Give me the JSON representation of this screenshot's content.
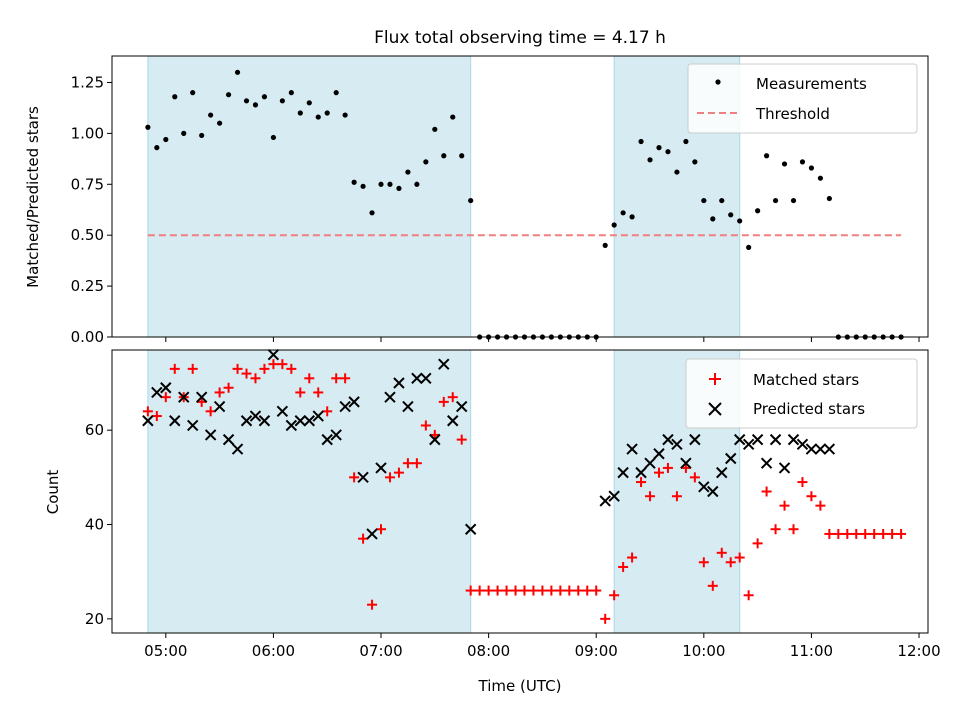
{
  "chart_data": [
    {
      "type": "scatter",
      "title": "Flux total observing time = 4.17 h",
      "xlabel": "",
      "ylabel": "Matched/Predicted stars",
      "xlim": [
        "04:30",
        "12:05"
      ],
      "ylim": [
        0,
        1.38
      ],
      "yticks": [
        0.0,
        0.25,
        0.5,
        0.75,
        1.0,
        1.25
      ],
      "ytick_labels": [
        "0.00",
        "0.25",
        "0.50",
        "0.75",
        "1.00",
        "1.25"
      ],
      "shaded_intervals": [
        [
          "04:50",
          "07:50"
        ],
        [
          "09:10",
          "10:20"
        ]
      ],
      "threshold": {
        "name": "Threshold",
        "value": 0.5,
        "x_range": [
          "04:50",
          "11:50"
        ],
        "color": "#f08080"
      },
      "legend": {
        "placement": "top-right",
        "entries": [
          "Measurements",
          "Threshold"
        ]
      },
      "series": [
        {
          "name": "Measurements",
          "marker": "dot",
          "color": "#000000",
          "points": [
            [
              "04:50",
              1.03
            ],
            [
              "04:55",
              0.93
            ],
            [
              "05:00",
              0.97
            ],
            [
              "05:05",
              1.18
            ],
            [
              "05:10",
              1.0
            ],
            [
              "05:15",
              1.2
            ],
            [
              "05:20",
              0.99
            ],
            [
              "05:25",
              1.09
            ],
            [
              "05:30",
              1.05
            ],
            [
              "05:35",
              1.19
            ],
            [
              "05:40",
              1.3
            ],
            [
              "05:45",
              1.16
            ],
            [
              "05:50",
              1.14
            ],
            [
              "05:55",
              1.18
            ],
            [
              "06:00",
              0.98
            ],
            [
              "06:05",
              1.16
            ],
            [
              "06:10",
              1.2
            ],
            [
              "06:15",
              1.1
            ],
            [
              "06:20",
              1.15
            ],
            [
              "06:25",
              1.08
            ],
            [
              "06:30",
              1.1
            ],
            [
              "06:35",
              1.2
            ],
            [
              "06:40",
              1.09
            ],
            [
              "06:45",
              0.76
            ],
            [
              "06:50",
              0.74
            ],
            [
              "06:55",
              0.61
            ],
            [
              "07:00",
              0.75
            ],
            [
              "07:05",
              0.75
            ],
            [
              "07:10",
              0.73
            ],
            [
              "07:15",
              0.81
            ],
            [
              "07:20",
              0.75
            ],
            [
              "07:25",
              0.86
            ],
            [
              "07:30",
              1.02
            ],
            [
              "07:35",
              0.89
            ],
            [
              "07:40",
              1.08
            ],
            [
              "07:45",
              0.89
            ],
            [
              "07:50",
              0.67
            ],
            [
              "07:55",
              0
            ],
            [
              "08:00",
              0
            ],
            [
              "08:05",
              0
            ],
            [
              "08:10",
              0
            ],
            [
              "08:15",
              0
            ],
            [
              "08:20",
              0
            ],
            [
              "08:25",
              0
            ],
            [
              "08:30",
              0
            ],
            [
              "08:35",
              0
            ],
            [
              "08:40",
              0
            ],
            [
              "08:45",
              0
            ],
            [
              "08:50",
              0
            ],
            [
              "08:55",
              0
            ],
            [
              "09:00",
              0
            ],
            [
              "09:05",
              0.45
            ],
            [
              "09:10",
              0.55
            ],
            [
              "09:15",
              0.61
            ],
            [
              "09:20",
              0.59
            ],
            [
              "09:25",
              0.96
            ],
            [
              "09:30",
              0.87
            ],
            [
              "09:35",
              0.93
            ],
            [
              "09:40",
              0.91
            ],
            [
              "09:45",
              0.81
            ],
            [
              "09:50",
              0.96
            ],
            [
              "09:55",
              0.86
            ],
            [
              "10:00",
              0.67
            ],
            [
              "10:05",
              0.58
            ],
            [
              "10:10",
              0.67
            ],
            [
              "10:15",
              0.6
            ],
            [
              "10:20",
              0.57
            ],
            [
              "10:25",
              0.44
            ],
            [
              "10:30",
              0.62
            ],
            [
              "10:35",
              0.89
            ],
            [
              "10:40",
              0.67
            ],
            [
              "10:45",
              0.85
            ],
            [
              "10:50",
              0.67
            ],
            [
              "10:55",
              0.86
            ],
            [
              "11:00",
              0.83
            ],
            [
              "11:05",
              0.78
            ],
            [
              "11:10",
              0.68
            ],
            [
              "11:15",
              0
            ],
            [
              "11:20",
              0
            ],
            [
              "11:25",
              0
            ],
            [
              "11:30",
              0
            ],
            [
              "11:35",
              0
            ],
            [
              "11:40",
              0
            ],
            [
              "11:45",
              0
            ],
            [
              "11:50",
              0
            ]
          ]
        }
      ]
    },
    {
      "type": "scatter",
      "title": "",
      "xlabel": "Time (UTC)",
      "ylabel": "Count",
      "xlim": [
        "04:30",
        "12:05"
      ],
      "ylim": [
        17,
        77
      ],
      "yticks": [
        20,
        40,
        60
      ],
      "ytick_labels": [
        "20",
        "40",
        "60"
      ],
      "xticks": [
        "05:00",
        "06:00",
        "07:00",
        "08:00",
        "09:00",
        "10:00",
        "11:00",
        "12:00"
      ],
      "xtick_labels": [
        "05:00",
        "06:00",
        "07:00",
        "08:00",
        "09:00",
        "10:00",
        "11:00",
        "12:00"
      ],
      "shaded_intervals": [
        [
          "04:50",
          "07:50"
        ],
        [
          "09:10",
          "10:20"
        ]
      ],
      "legend": {
        "placement": "top-right",
        "entries": [
          "Matched stars",
          "Predicted stars"
        ]
      },
      "series": [
        {
          "name": "Matched stars",
          "marker": "plus",
          "color": "#ff0000",
          "points": [
            [
              "04:50",
              64
            ],
            [
              "04:55",
              63
            ],
            [
              "05:00",
              67
            ],
            [
              "05:05",
              73
            ],
            [
              "05:10",
              67
            ],
            [
              "05:15",
              73
            ],
            [
              "05:20",
              66
            ],
            [
              "05:25",
              64
            ],
            [
              "05:30",
              68
            ],
            [
              "05:35",
              69
            ],
            [
              "05:40",
              73
            ],
            [
              "05:45",
              72
            ],
            [
              "05:50",
              71
            ],
            [
              "05:55",
              73
            ],
            [
              "06:00",
              74
            ],
            [
              "06:05",
              74
            ],
            [
              "06:10",
              73
            ],
            [
              "06:15",
              68
            ],
            [
              "06:20",
              71
            ],
            [
              "06:25",
              68
            ],
            [
              "06:30",
              64
            ],
            [
              "06:35",
              71
            ],
            [
              "06:40",
              71
            ],
            [
              "06:45",
              50
            ],
            [
              "06:50",
              37
            ],
            [
              "06:55",
              23
            ],
            [
              "07:00",
              39
            ],
            [
              "07:05",
              50
            ],
            [
              "07:10",
              51
            ],
            [
              "07:15",
              53
            ],
            [
              "07:20",
              53
            ],
            [
              "07:25",
              61
            ],
            [
              "07:30",
              59
            ],
            [
              "07:35",
              66
            ],
            [
              "07:40",
              67
            ],
            [
              "07:45",
              58
            ],
            [
              "07:50",
              26
            ],
            [
              "07:55",
              26
            ],
            [
              "08:00",
              26
            ],
            [
              "08:05",
              26
            ],
            [
              "08:10",
              26
            ],
            [
              "08:15",
              26
            ],
            [
              "08:20",
              26
            ],
            [
              "08:25",
              26
            ],
            [
              "08:30",
              26
            ],
            [
              "08:35",
              26
            ],
            [
              "08:40",
              26
            ],
            [
              "08:45",
              26
            ],
            [
              "08:50",
              26
            ],
            [
              "08:55",
              26
            ],
            [
              "09:00",
              26
            ],
            [
              "09:05",
              20
            ],
            [
              "09:10",
              25
            ],
            [
              "09:15",
              31
            ],
            [
              "09:20",
              33
            ],
            [
              "09:25",
              49
            ],
            [
              "09:30",
              46
            ],
            [
              "09:35",
              51
            ],
            [
              "09:40",
              52
            ],
            [
              "09:45",
              46
            ],
            [
              "09:50",
              52
            ],
            [
              "09:55",
              50
            ],
            [
              "10:00",
              32
            ],
            [
              "10:05",
              27
            ],
            [
              "10:10",
              34
            ],
            [
              "10:15",
              32
            ],
            [
              "10:20",
              33
            ],
            [
              "10:25",
              25
            ],
            [
              "10:30",
              36
            ],
            [
              "10:35",
              47
            ],
            [
              "10:40",
              39
            ],
            [
              "10:45",
              44
            ],
            [
              "10:50",
              39
            ],
            [
              "10:55",
              49
            ],
            [
              "11:00",
              46
            ],
            [
              "11:05",
              44
            ],
            [
              "11:10",
              38
            ],
            [
              "11:15",
              38
            ],
            [
              "11:20",
              38
            ],
            [
              "11:25",
              38
            ],
            [
              "11:30",
              38
            ],
            [
              "11:35",
              38
            ],
            [
              "11:40",
              38
            ],
            [
              "11:45",
              38
            ],
            [
              "11:50",
              38
            ]
          ]
        },
        {
          "name": "Predicted stars",
          "marker": "x",
          "color": "#000000",
          "points": [
            [
              "04:50",
              62
            ],
            [
              "04:55",
              68
            ],
            [
              "05:00",
              69
            ],
            [
              "05:05",
              62
            ],
            [
              "05:10",
              67
            ],
            [
              "05:15",
              61
            ],
            [
              "05:20",
              67
            ],
            [
              "05:25",
              59
            ],
            [
              "05:30",
              65
            ],
            [
              "05:35",
              58
            ],
            [
              "05:40",
              56
            ],
            [
              "05:45",
              62
            ],
            [
              "05:50",
              63
            ],
            [
              "05:55",
              62
            ],
            [
              "06:00",
              76
            ],
            [
              "06:05",
              64
            ],
            [
              "06:10",
              61
            ],
            [
              "06:15",
              62
            ],
            [
              "06:20",
              62
            ],
            [
              "06:25",
              63
            ],
            [
              "06:30",
              58
            ],
            [
              "06:35",
              59
            ],
            [
              "06:40",
              65
            ],
            [
              "06:45",
              66
            ],
            [
              "06:50",
              50
            ],
            [
              "06:55",
              38
            ],
            [
              "07:00",
              52
            ],
            [
              "07:05",
              67
            ],
            [
              "07:10",
              70
            ],
            [
              "07:15",
              65
            ],
            [
              "07:20",
              71
            ],
            [
              "07:25",
              71
            ],
            [
              "07:30",
              58
            ],
            [
              "07:35",
              74
            ],
            [
              "07:40",
              62
            ],
            [
              "07:45",
              65
            ],
            [
              "07:50",
              39
            ],
            [
              "09:05",
              45
            ],
            [
              "09:10",
              46
            ],
            [
              "09:15",
              51
            ],
            [
              "09:20",
              56
            ],
            [
              "09:25",
              51
            ],
            [
              "09:30",
              53
            ],
            [
              "09:35",
              55
            ],
            [
              "09:40",
              58
            ],
            [
              "09:45",
              57
            ],
            [
              "09:50",
              53
            ],
            [
              "09:55",
              58
            ],
            [
              "10:00",
              48
            ],
            [
              "10:05",
              47
            ],
            [
              "10:10",
              51
            ],
            [
              "10:15",
              54
            ],
            [
              "10:20",
              58
            ],
            [
              "10:25",
              57
            ],
            [
              "10:30",
              58
            ],
            [
              "10:35",
              53
            ],
            [
              "10:40",
              58
            ],
            [
              "10:45",
              52
            ],
            [
              "10:50",
              58
            ],
            [
              "10:55",
              57
            ],
            [
              "11:00",
              56
            ],
            [
              "11:05",
              56
            ],
            [
              "11:10",
              56
            ]
          ]
        }
      ]
    }
  ]
}
